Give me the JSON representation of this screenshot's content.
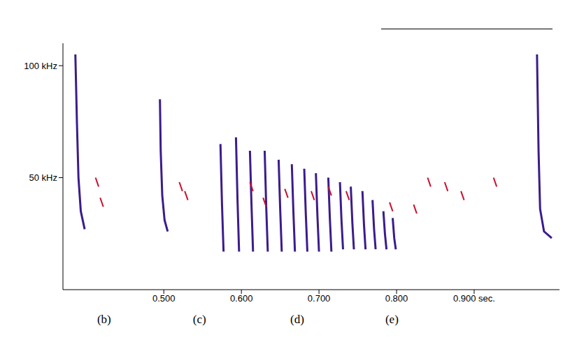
{
  "chart_data": {
    "type": "scatter",
    "xlim": [
      0.37,
      1.01
    ],
    "xticks": [
      {
        "value": 0.5,
        "label": "0.500"
      },
      {
        "value": 0.6,
        "label": "0.600"
      },
      {
        "value": 0.7,
        "label": "0.700"
      },
      {
        "value": 0.8,
        "label": "0.800"
      },
      {
        "value": 0.9,
        "label": "0.900 sec."
      }
    ],
    "ylim": [
      0,
      110
    ],
    "yticks": [
      {
        "value": 50,
        "label": "50 kHz"
      },
      {
        "value": 100,
        "label": "100 kHz"
      }
    ],
    "grid": false,
    "tick_labels": true,
    "series": [
      {
        "color": "#3b1c8c",
        "marker": "none",
        "line_style": "solid",
        "x": [
          0.386,
          0.388,
          0.39,
          0.393,
          0.398,
          null,
          0.495,
          0.496,
          0.498,
          0.501,
          0.505,
          null,
          0.573,
          0.575,
          0.577,
          null,
          0.593,
          0.595,
          0.597,
          null,
          0.611,
          0.613,
          0.615,
          null,
          0.63,
          0.632,
          0.634,
          null,
          0.648,
          0.65,
          0.652,
          null,
          0.665,
          0.667,
          0.669,
          null,
          0.681,
          0.683,
          0.685,
          null,
          0.696,
          0.698,
          0.7,
          null,
          0.712,
          0.714,
          0.716,
          null,
          0.727,
          0.729,
          0.731,
          null,
          0.741,
          0.743,
          0.745,
          null,
          0.756,
          0.758,
          0.76,
          null,
          0.769,
          0.771,
          0.773,
          null,
          0.783,
          0.785,
          0.787,
          null,
          0.795,
          0.797,
          0.799,
          null,
          0.981,
          0.983,
          0.985,
          0.99,
          1.0
        ],
        "values": [
          105,
          75,
          50,
          35,
          27,
          null,
          85,
          62,
          42,
          31,
          26,
          null,
          65,
          38,
          17,
          null,
          68,
          40,
          17,
          null,
          62,
          38,
          17,
          null,
          62,
          37,
          17,
          null,
          58,
          36,
          17,
          null,
          56,
          35,
          17,
          null,
          54,
          34,
          17,
          null,
          52,
          33,
          17,
          null,
          50,
          32,
          17,
          null,
          48,
          31,
          18,
          null,
          46,
          30,
          18,
          null,
          44,
          29,
          18,
          null,
          40,
          27,
          18,
          null,
          35,
          25,
          18,
          null,
          32,
          23,
          18,
          null,
          105,
          62,
          36,
          26,
          23
        ]
      },
      {
        "color": "#c8102e",
        "marker": "none",
        "line_style": "solid",
        "x": [
          0.412,
          0.416,
          null,
          0.418,
          0.422,
          null,
          0.52,
          0.524,
          null,
          0.527,
          0.531,
          null,
          0.611,
          0.615,
          null,
          0.628,
          0.632,
          null,
          0.656,
          0.66,
          null,
          0.69,
          0.694,
          null,
          0.712,
          0.716,
          null,
          0.735,
          0.739,
          null,
          0.791,
          0.795,
          null,
          0.822,
          0.826,
          null,
          0.84,
          0.844,
          null,
          0.862,
          0.866,
          null,
          0.883,
          0.887,
          null,
          0.925,
          0.929
        ],
        "values": [
          50,
          46,
          null,
          41,
          37,
          null,
          48,
          44,
          null,
          44,
          40,
          null,
          48,
          44,
          null,
          41,
          37,
          null,
          45,
          41,
          null,
          44,
          40,
          null,
          46,
          42,
          null,
          44,
          40,
          null,
          39,
          35,
          null,
          38,
          34,
          null,
          50,
          46,
          null,
          48,
          44,
          null,
          44,
          40,
          null,
          50,
          46
        ]
      }
    ],
    "annotations": [
      {
        "text": "(b)",
        "x": 0.423
      },
      {
        "text": "(c)",
        "x": 0.546
      },
      {
        "text": "(d)",
        "x": 0.672
      },
      {
        "text": "(e)",
        "x": 0.794
      }
    ]
  }
}
